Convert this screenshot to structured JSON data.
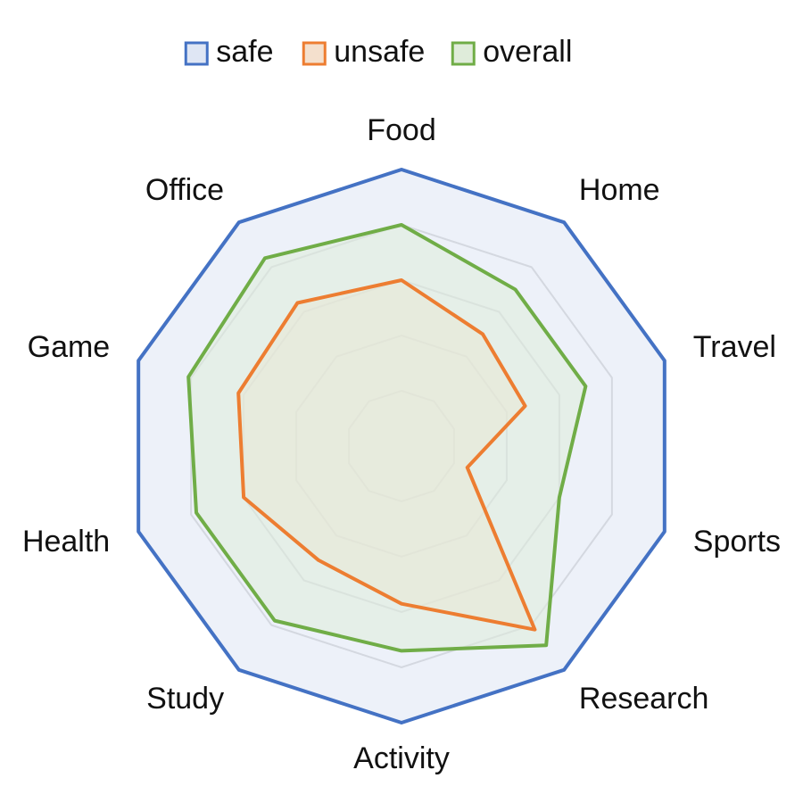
{
  "chart_data": {
    "type": "radar",
    "categories": [
      "Food",
      "Home",
      "Travel",
      "Sports",
      "Research",
      "Activity",
      "Study",
      "Health",
      "Game",
      "Office"
    ],
    "rlim": [
      0,
      1
    ],
    "grid": true,
    "grid_levels": [
      0.2,
      0.4,
      0.6,
      0.8,
      1.0
    ],
    "legend_position": "top",
    "series": [
      {
        "name": "safe",
        "color": "#4472C4",
        "fill": "#dfe6f4",
        "values": [
          1.0,
          1.0,
          1.0,
          1.0,
          1.0,
          1.0,
          1.0,
          1.0,
          1.0,
          1.0
        ]
      },
      {
        "name": "unsafe",
        "color": "#ED7D31",
        "fill": "#f4e0cd",
        "values": [
          0.6,
          0.5,
          0.47,
          0.25,
          0.82,
          0.57,
          0.51,
          0.6,
          0.62,
          0.64
        ]
      },
      {
        "name": "overall",
        "color": "#70AD47",
        "fill": "#dfecda",
        "values": [
          0.8,
          0.7,
          0.7,
          0.6,
          0.89,
          0.74,
          0.78,
          0.78,
          0.81,
          0.84
        ]
      }
    ],
    "gridline_color": "#c8c8c8"
  }
}
